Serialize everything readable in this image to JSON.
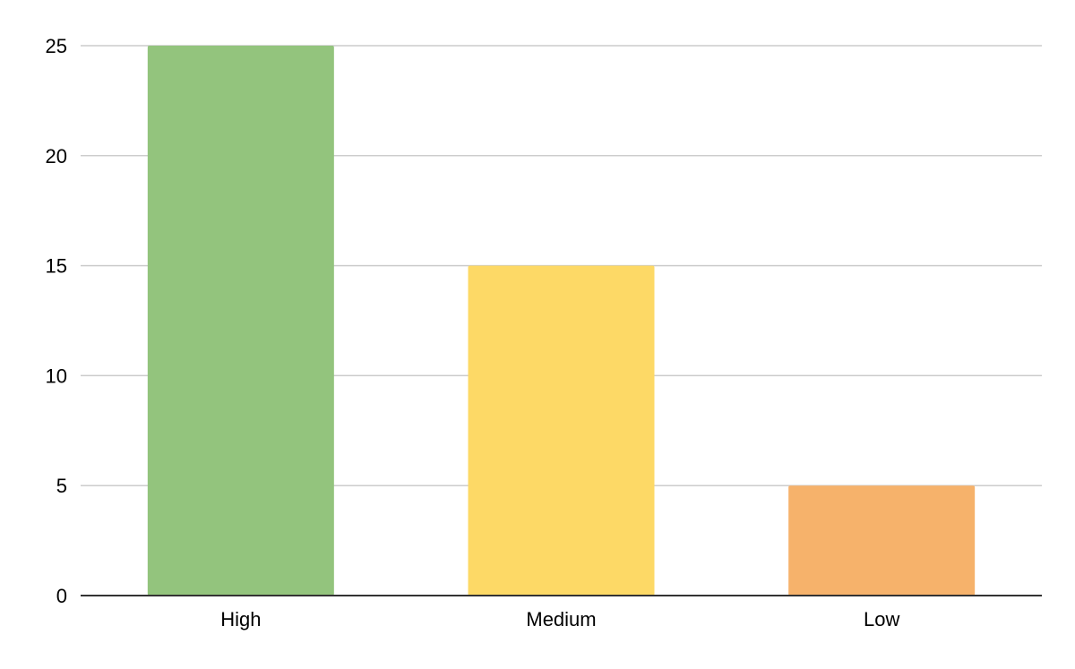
{
  "chart_data": {
    "type": "bar",
    "title": "",
    "xlabel": "",
    "ylabel": "",
    "categories": [
      "High",
      "Medium",
      "Low"
    ],
    "values": [
      25,
      15,
      5
    ],
    "bar_colors": [
      "#93c47d",
      "#fdd966",
      "#f6b26b"
    ],
    "ylim": [
      0,
      25
    ],
    "yticks": [
      {
        "value": 0,
        "label": "0"
      },
      {
        "value": 5,
        "label": "5"
      },
      {
        "value": 10,
        "label": "10"
      },
      {
        "value": 15,
        "label": "15"
      },
      {
        "value": 20,
        "label": "20"
      },
      {
        "value": 25,
        "label": "25"
      }
    ],
    "grid": true,
    "legend": "none",
    "gridline_color": "#cccccc",
    "axis_color": "#333333"
  }
}
